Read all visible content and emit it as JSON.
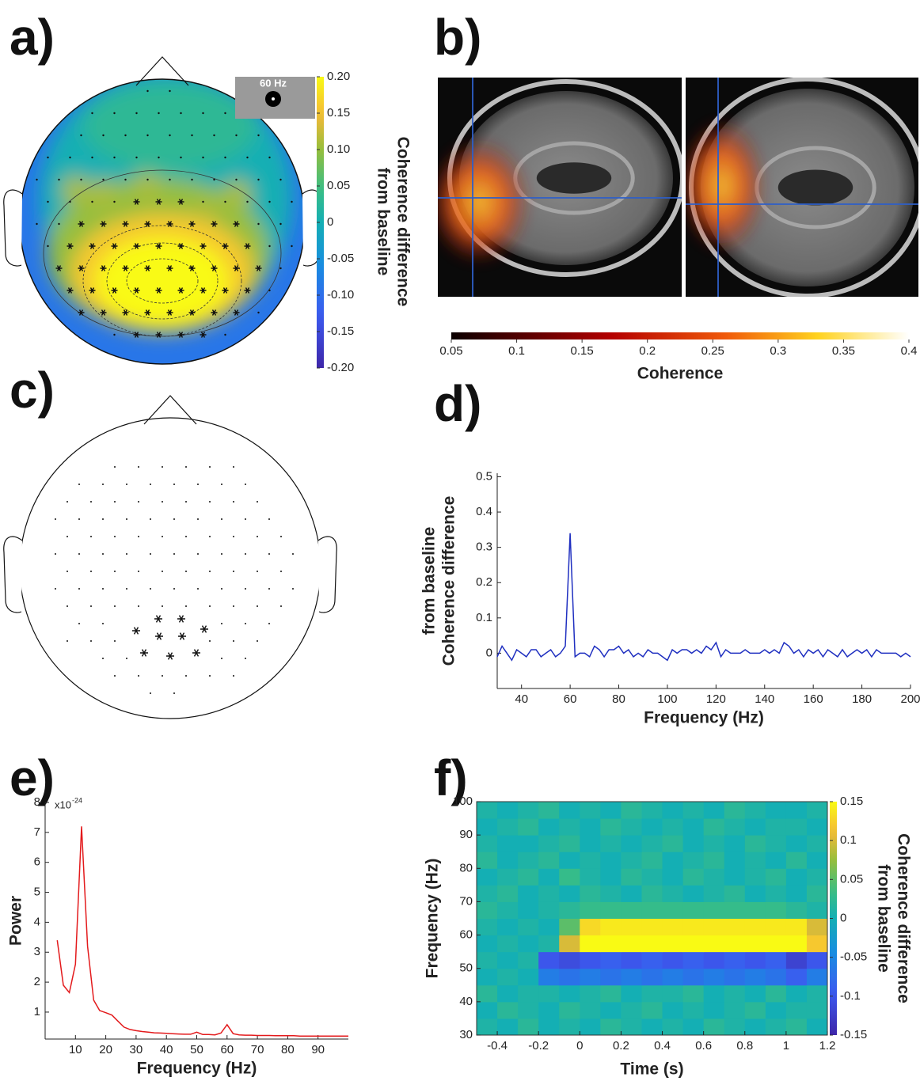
{
  "chart_data": [
    {
      "type": "topomap",
      "panel_label": "a)",
      "inset_label": "60 Hz",
      "colorbar_label": [
        "Coherence difference",
        "from baseline"
      ],
      "clim": [
        -0.2,
        0.2
      ],
      "cticks": [
        {
          "value": 0.2,
          "label": "0.20"
        },
        0.15,
        {
          "value": 0.1,
          "label": "0.10"
        },
        0.05,
        0,
        -0.05,
        {
          "value": -0.1,
          "label": "-0.10"
        },
        -0.15,
        {
          "value": -0.2,
          "label": "-0.20"
        }
      ]
    },
    {
      "type": "brain_slices",
      "panel_label": "b)",
      "colorbar_label": "Coherence",
      "clim": [
        0.05,
        0.4
      ],
      "cticks": [
        0.05,
        0.1,
        0.15,
        0.2,
        0.25,
        0.3,
        0.35,
        0.4
      ]
    },
    {
      "type": "electrode_map",
      "panel_label": "c)"
    },
    {
      "type": "line",
      "panel_label": "d)",
      "color": "#1f2fc0",
      "xlabel": "Frequency (Hz)",
      "ylabel": [
        "Coherence difference",
        "from baseline"
      ],
      "x": [
        30,
        32,
        34,
        36,
        38,
        40,
        42,
        44,
        46,
        48,
        50,
        52,
        54,
        56,
        58,
        60,
        62,
        64,
        66,
        68,
        70,
        72,
        74,
        76,
        78,
        80,
        82,
        84,
        86,
        88,
        90,
        92,
        94,
        96,
        98,
        100,
        102,
        104,
        106,
        108,
        110,
        112,
        114,
        116,
        118,
        120,
        122,
        124,
        126,
        128,
        130,
        132,
        134,
        136,
        138,
        140,
        142,
        144,
        146,
        148,
        150,
        152,
        154,
        156,
        158,
        160,
        162,
        164,
        166,
        168,
        170,
        172,
        174,
        176,
        178,
        180,
        182,
        184,
        186,
        188,
        190,
        192,
        194,
        196,
        198,
        200
      ],
      "values": [
        -0.01,
        0.02,
        0.0,
        -0.02,
        0.01,
        0.0,
        -0.01,
        0.01,
        0.01,
        -0.01,
        0.0,
        0.01,
        -0.01,
        0.0,
        0.02,
        0.34,
        -0.01,
        0.0,
        0.0,
        -0.01,
        0.02,
        0.01,
        -0.01,
        0.01,
        0.01,
        0.02,
        0.0,
        0.01,
        -0.01,
        0.0,
        -0.01,
        0.01,
        0.0,
        0.0,
        -0.01,
        -0.02,
        0.01,
        0.0,
        0.01,
        0.01,
        0.0,
        0.01,
        0.0,
        0.02,
        0.01,
        0.03,
        -0.01,
        0.01,
        0.0,
        0.0,
        0.0,
        0.01,
        0.0,
        0.0,
        0.0,
        0.01,
        0.0,
        0.01,
        0.0,
        0.03,
        0.02,
        0.0,
        0.01,
        -0.01,
        0.01,
        0.0,
        0.01,
        -0.01,
        0.01,
        0.0,
        -0.01,
        0.01,
        -0.01,
        0.0,
        0.01,
        0.0,
        0.01,
        -0.01,
        0.01,
        0.0,
        0.0,
        0.0,
        0.0,
        -0.01,
        0.0,
        -0.01
      ],
      "xlim": [
        30,
        200
      ],
      "ylim": [
        -0.1,
        0.51
      ],
      "xticks": [
        40,
        60,
        80,
        100,
        120,
        140,
        160,
        180,
        200
      ],
      "yticks": [
        0,
        0.1,
        0.2,
        0.3,
        0.4,
        0.5
      ]
    },
    {
      "type": "line",
      "panel_label": "e)",
      "color": "#e31a1c",
      "xlabel": "Frequency (Hz)",
      "ylabel": [
        "Power"
      ],
      "scale_label": "x10",
      "scale_exponent": "-24",
      "x": [
        4,
        6,
        8,
        10,
        12,
        14,
        16,
        18,
        20,
        22,
        24,
        26,
        28,
        30,
        32,
        34,
        36,
        38,
        40,
        42,
        44,
        46,
        48,
        50,
        52,
        54,
        56,
        58,
        60,
        62,
        64,
        66,
        68,
        70,
        72,
        74,
        76,
        78,
        80,
        82,
        84,
        86,
        88,
        90,
        92,
        94,
        96,
        98,
        100
      ],
      "values": [
        3.4,
        1.9,
        1.65,
        2.6,
        7.2,
        3.2,
        1.4,
        1.05,
        0.98,
        0.9,
        0.7,
        0.5,
        0.42,
        0.38,
        0.35,
        0.33,
        0.31,
        0.3,
        0.29,
        0.28,
        0.27,
        0.26,
        0.26,
        0.33,
        0.25,
        0.25,
        0.24,
        0.3,
        0.58,
        0.28,
        0.24,
        0.23,
        0.23,
        0.22,
        0.22,
        0.22,
        0.21,
        0.21,
        0.21,
        0.21,
        0.2,
        0.2,
        0.2,
        0.2,
        0.2,
        0.2,
        0.2,
        0.2,
        0.2
      ],
      "xlim": [
        0,
        100
      ],
      "ylim": [
        0.1,
        8
      ],
      "xticks": [
        10,
        20,
        30,
        40,
        50,
        60,
        70,
        80,
        90
      ],
      "yticks": [
        1,
        2,
        3,
        4,
        5,
        6,
        7,
        8
      ]
    },
    {
      "type": "heatmap",
      "panel_label": "f)",
      "xlabel": "Time (s)",
      "ylabel": "Frequency (Hz)",
      "colorbar_label": [
        "Coherence difference",
        "from baseline"
      ],
      "x_edges": [
        -0.5,
        -0.4,
        -0.3,
        -0.2,
        -0.1,
        0,
        0.1,
        0.2,
        0.3,
        0.4,
        0.5,
        0.6,
        0.7,
        0.8,
        0.9,
        1,
        1.1,
        1.2
      ],
      "y_edges": [
        30,
        35,
        40,
        45,
        50,
        55,
        60,
        65,
        70,
        75,
        80,
        85,
        90,
        95,
        100
      ],
      "z": [
        [
          0.01,
          0.0,
          0.02,
          0.0,
          0.01,
          0.0,
          0.02,
          0.01,
          0.0,
          0.01,
          0.0,
          0.02,
          0.01,
          0.0,
          0.01,
          0.02,
          0.0
        ],
        [
          0.0,
          0.02,
          0.01,
          0.0,
          0.02,
          0.01,
          0.0,
          0.01,
          0.02,
          0.0,
          0.01,
          0.0,
          0.01,
          0.02,
          0.0,
          0.01,
          0.01
        ],
        [
          0.02,
          0.0,
          0.01,
          0.01,
          0.0,
          0.01,
          0.02,
          0.0,
          0.01,
          0.01,
          0.02,
          0.0,
          0.01,
          0.0,
          0.02,
          0.0,
          0.01
        ],
        [
          0.0,
          0.01,
          0.0,
          -0.06,
          -0.07,
          -0.06,
          -0.07,
          -0.06,
          -0.07,
          -0.06,
          -0.07,
          -0.06,
          -0.07,
          -0.06,
          -0.07,
          -0.09,
          -0.06
        ],
        [
          0.01,
          0.0,
          0.01,
          -0.1,
          -0.11,
          -0.1,
          -0.09,
          -0.1,
          -0.09,
          -0.1,
          -0.09,
          -0.1,
          -0.09,
          -0.1,
          -0.09,
          -0.12,
          -0.1
        ],
        [
          0.0,
          0.01,
          0.0,
          0.01,
          0.1,
          0.15,
          0.15,
          0.15,
          0.15,
          0.15,
          0.15,
          0.15,
          0.15,
          0.15,
          0.15,
          0.15,
          0.12
        ],
        [
          0.01,
          0.0,
          0.01,
          0.0,
          0.05,
          0.13,
          0.14,
          0.14,
          0.14,
          0.14,
          0.14,
          0.14,
          0.14,
          0.14,
          0.14,
          0.14,
          0.1
        ],
        [
          0.02,
          0.01,
          0.0,
          0.01,
          0.02,
          0.03,
          0.03,
          0.03,
          0.03,
          0.03,
          0.03,
          0.03,
          0.03,
          0.03,
          0.03,
          0.02,
          0.01
        ],
        [
          0.01,
          0.02,
          0.0,
          0.01,
          0.0,
          0.02,
          0.01,
          0.0,
          0.02,
          0.01,
          0.0,
          0.01,
          0.02,
          0.0,
          0.01,
          0.0,
          0.02
        ],
        [
          0.0,
          0.01,
          0.02,
          0.0,
          0.03,
          0.01,
          0.0,
          0.02,
          0.01,
          0.0,
          0.02,
          0.01,
          0.0,
          0.01,
          0.02,
          0.0,
          0.01
        ],
        [
          0.02,
          0.0,
          0.01,
          0.02,
          0.0,
          0.01,
          0.0,
          0.01,
          0.02,
          0.0,
          0.01,
          0.02,
          0.0,
          0.01,
          0.0,
          0.02,
          0.0
        ],
        [
          0.01,
          0.0,
          0.0,
          0.01,
          0.02,
          0.0,
          0.01,
          0.0,
          0.01,
          0.02,
          0.0,
          0.01,
          0.0,
          0.02,
          0.01,
          0.0,
          0.01
        ],
        [
          0.0,
          0.01,
          0.02,
          0.0,
          0.01,
          0.0,
          0.02,
          0.01,
          0.0,
          0.01,
          0.0,
          0.02,
          0.01,
          0.0,
          0.01,
          0.01,
          0.0
        ],
        [
          0.01,
          0.0,
          0.01,
          0.02,
          0.0,
          0.01,
          0.0,
          0.02,
          0.01,
          0.0,
          0.01,
          0.0,
          0.02,
          0.01,
          0.0,
          0.0,
          0.01
        ]
      ],
      "xlim": [
        -0.5,
        1.2
      ],
      "ylim": [
        30,
        100
      ],
      "clim": [
        -0.15,
        0.15
      ],
      "xticks": [
        -0.4,
        -0.2,
        0,
        0.2,
        0.4,
        0.6,
        0.8,
        1,
        1.2
      ],
      "yticks": [
        30,
        40,
        50,
        60,
        70,
        80,
        90,
        100
      ],
      "cticks": [
        0.15,
        0.1,
        0.05,
        0,
        -0.05,
        -0.1,
        -0.15
      ]
    }
  ]
}
